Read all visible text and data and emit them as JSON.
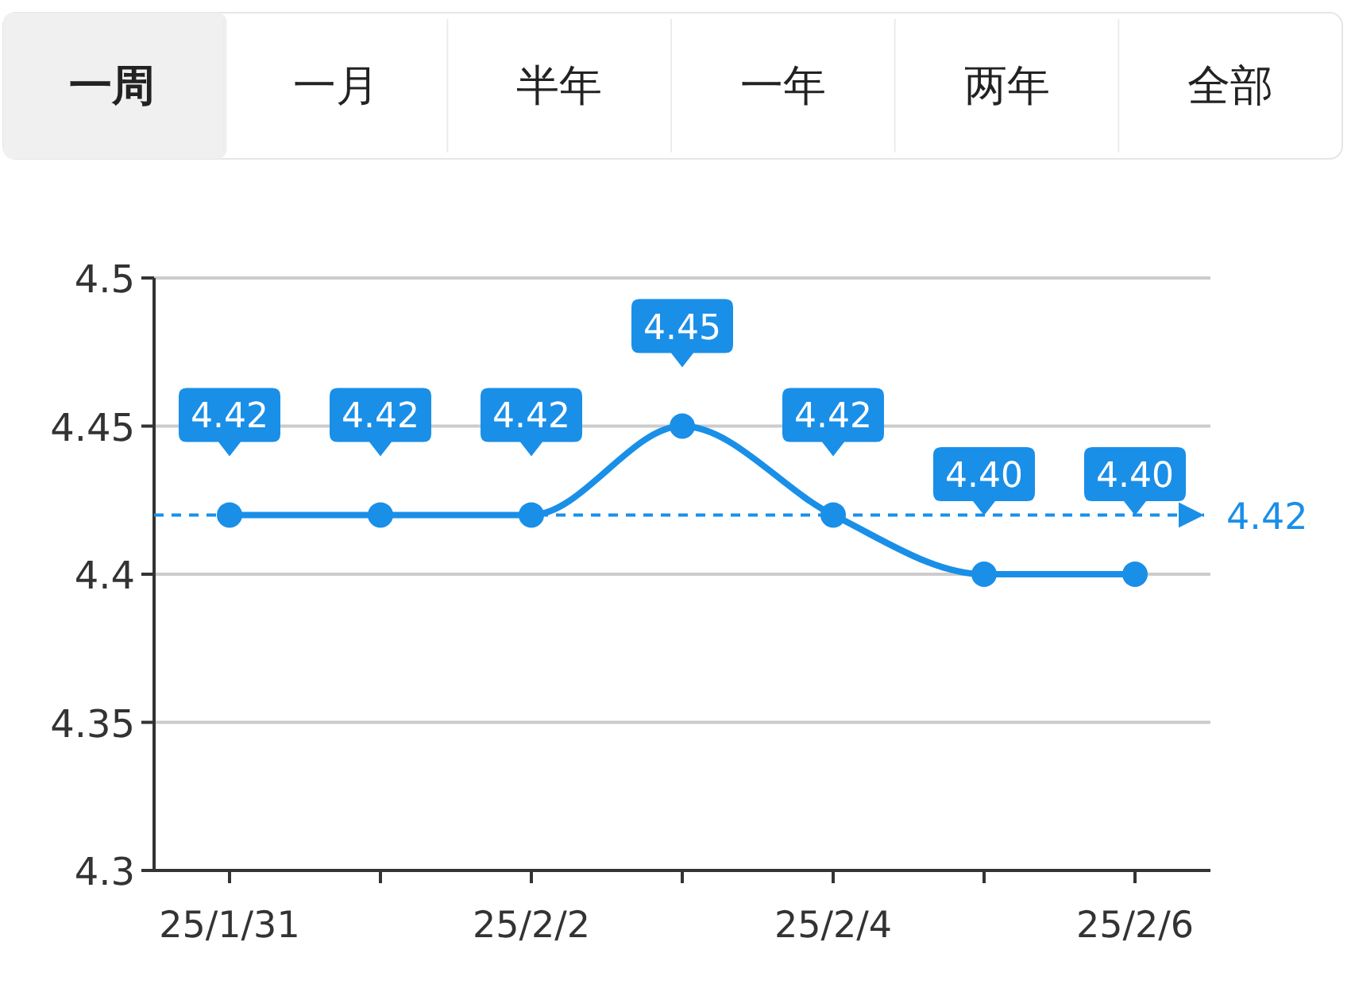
{
  "chart_data": {
    "type": "line",
    "annotations": [
      "一周",
      "一月",
      "半年",
      "一年",
      "两年",
      "全部"
    ],
    "categories": [
      "25/1/31",
      null,
      "25/2/2",
      null,
      "25/2/4",
      null,
      "25/2/6"
    ],
    "series": [
      {
        "color": "#1a8fe8",
        "values": [
          4.42,
          4.42,
          4.42,
          4.45,
          4.42,
          4.4,
          4.4
        ],
        "value_labels": [
          "4.42",
          "4.42",
          "4.42",
          "4.45",
          "4.42",
          "4.40",
          "4.40"
        ]
      }
    ],
    "ylim": [
      4.3,
      4.5
    ],
    "yticks": [
      4.3,
      4.35,
      4.4,
      4.45,
      4.5
    ],
    "grid": "y",
    "marker": "circle",
    "line_style": "solid",
    "ref_lines": [
      {
        "axis": "y",
        "value": 4.42,
        "label": "4.42",
        "color": "#1a8fe8",
        "line_style": "dashed"
      }
    ]
  }
}
